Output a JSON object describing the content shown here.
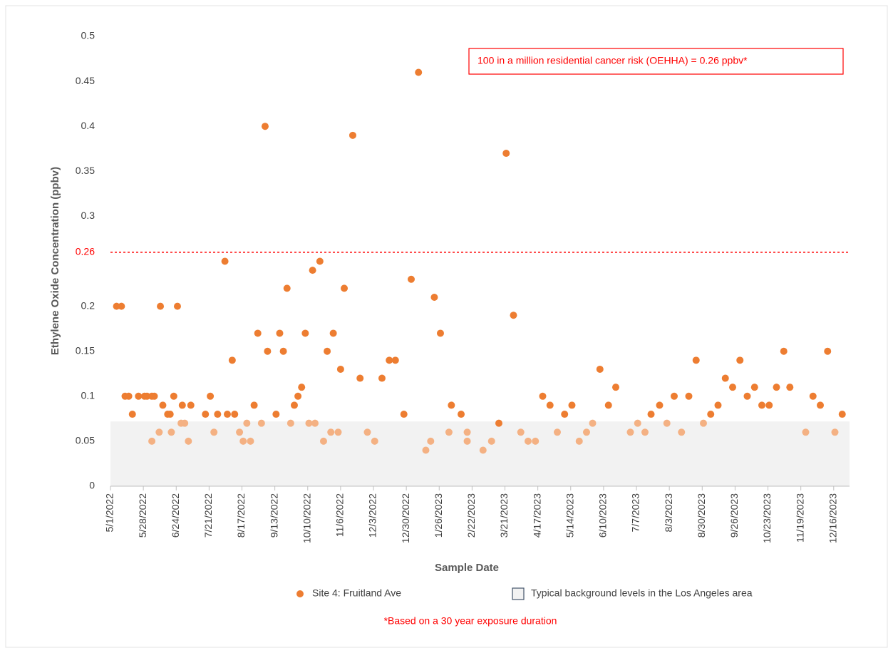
{
  "chart_data": {
    "type": "scatter",
    "x_label": "Sample Date",
    "y_label": "Ethylene Oxide Concentration (ppbv)",
    "xlim": [
      "5/1/2022",
      "12/29/2023"
    ],
    "xticks": [
      "5/1/2022",
      "5/28/2022",
      "6/24/2022",
      "7/21/2022",
      "8/17/2022",
      "9/13/2022",
      "10/10/2022",
      "11/6/2022",
      "12/3/2022",
      "12/30/2022",
      "1/26/2023",
      "2/22/2023",
      "3/21/2023",
      "4/17/2023",
      "5/14/2023",
      "6/10/2023",
      "7/7/2023",
      "8/3/2023",
      "8/30/2023",
      "9/26/2023",
      "10/23/2023",
      "11/19/2023",
      "12/16/2023"
    ],
    "ylim": [
      0,
      0.5
    ],
    "yticks": [
      0,
      0.05,
      0.1,
      0.15,
      0.2,
      0.3,
      0.35,
      0.4,
      0.45,
      0.5
    ],
    "grid": false,
    "reference_line": {
      "value": 0.26,
      "label": "0.26",
      "color": "#ff0000",
      "annotation": "100 in a million residential cancer risk (OEHHA) = 0.26 ppbv*"
    },
    "background_band": {
      "range": [
        0,
        0.072
      ],
      "label": "Typical background levels in the Los Angeles area",
      "color": "#f2f2f2"
    },
    "footnote": "*Based on a 30 year exposure duration",
    "series": [
      {
        "name": "Site 4: Fruitland Ave",
        "color": "#ed7d31",
        "x": [
          "5/6/2022",
          "5/10/2022",
          "5/13/2022",
          "5/16/2022",
          "5/19/2022",
          "5/24/2022",
          "5/29/2022",
          "5/31/2022",
          "6/4/2022",
          "6/6/2022",
          "6/11/2022",
          "6/13/2022",
          "6/17/2022",
          "6/19/2022",
          "6/22/2022",
          "6/25/2022",
          "6/29/2022",
          "7/6/2022",
          "7/18/2022",
          "7/22/2022",
          "7/28/2022",
          "8/3/2022",
          "8/5/2022",
          "8/9/2022",
          "8/11/2022",
          "8/27/2022",
          "8/30/2022",
          "9/5/2022",
          "9/7/2022",
          "9/14/2022",
          "9/17/2022",
          "9/20/2022",
          "9/23/2022",
          "9/29/2022",
          "10/2/2022",
          "10/5/2022",
          "10/8/2022",
          "10/14/2022",
          "10/20/2022",
          "10/26/2022",
          "10/31/2022",
          "11/6/2022",
          "11/9/2022",
          "11/16/2022",
          "11/22/2022",
          "12/10/2022",
          "12/16/2022",
          "12/21/2022",
          "12/28/2022",
          "1/3/2023",
          "1/9/2023",
          "1/22/2023",
          "1/27/2023",
          "2/5/2023",
          "2/13/2023",
          "3/16/2023",
          "3/22/2023",
          "3/28/2023",
          "4/21/2023",
          "4/27/2023",
          "5/9/2023",
          "5/15/2023",
          "6/7/2023",
          "6/14/2023",
          "6/20/2023",
          "7/19/2023",
          "7/26/2023",
          "8/7/2023",
          "8/19/2023",
          "8/25/2023",
          "9/6/2023",
          "9/12/2023",
          "9/18/2023",
          "9/24/2023",
          "9/30/2023",
          "10/6/2023",
          "10/12/2023",
          "10/18/2023",
          "10/24/2023",
          "10/30/2023",
          "11/5/2023",
          "11/10/2023",
          "11/29/2023",
          "12/5/2023",
          "12/11/2023",
          "12/23/2023"
        ],
        "values": [
          0.2,
          0.2,
          0.1,
          0.1,
          0.08,
          0.1,
          0.1,
          0.1,
          0.1,
          0.1,
          0.2,
          0.09,
          0.08,
          0.08,
          0.1,
          0.2,
          0.09,
          0.09,
          0.08,
          0.1,
          0.08,
          0.25,
          0.08,
          0.14,
          0.08,
          0.09,
          0.17,
          0.4,
          0.15,
          0.08,
          0.17,
          0.15,
          0.22,
          0.09,
          0.1,
          0.11,
          0.17,
          0.24,
          0.25,
          0.15,
          0.17,
          0.13,
          0.22,
          0.39,
          0.12,
          0.12,
          0.14,
          0.14,
          0.08,
          0.23,
          0.46,
          0.21,
          0.17,
          0.09,
          0.08,
          0.07,
          0.37,
          0.19,
          0.1,
          0.09,
          0.08,
          0.09,
          0.13,
          0.09,
          0.11,
          0.08,
          0.09,
          0.1,
          0.1,
          0.14,
          0.08,
          0.09,
          0.12,
          0.11,
          0.14,
          0.1,
          0.11,
          0.09,
          0.09,
          0.11,
          0.15,
          0.11,
          0.1,
          0.09,
          0.15,
          0.08
        ]
      },
      {
        "color": "#f4b183",
        "x": [
          "6/4/2022",
          "6/10/2022",
          "6/20/2022",
          "6/28/2022",
          "7/1/2022",
          "7/4/2022",
          "7/25/2022",
          "8/15/2022",
          "8/18/2022",
          "8/21/2022",
          "8/24/2022",
          "9/2/2022",
          "9/26/2022",
          "10/11/2022",
          "10/16/2022",
          "10/23/2022",
          "10/29/2022",
          "11/4/2022",
          "11/28/2022",
          "12/4/2022",
          "1/15/2023",
          "1/19/2023",
          "2/3/2023",
          "2/18/2023",
          "2/18/2023",
          "3/3/2023",
          "3/10/2023",
          "4/3/2023",
          "4/9/2023",
          "4/15/2023",
          "5/3/2023",
          "5/21/2023",
          "5/27/2023",
          "6/1/2023",
          "7/2/2023",
          "7/8/2023",
          "7/14/2023",
          "8/1/2023",
          "8/13/2023",
          "8/31/2023",
          "11/23/2023",
          "12/17/2023"
        ],
        "values": [
          0.05,
          0.06,
          0.06,
          0.07,
          0.07,
          0.05,
          0.06,
          0.06,
          0.05,
          0.07,
          0.05,
          0.07,
          0.07,
          0.07,
          0.07,
          0.05,
          0.06,
          0.06,
          0.06,
          0.05,
          0.04,
          0.05,
          0.06,
          0.05,
          0.06,
          0.04,
          0.05,
          0.06,
          0.05,
          0.05,
          0.06,
          0.05,
          0.06,
          0.07,
          0.06,
          0.07,
          0.06,
          0.07,
          0.06,
          0.07,
          0.06,
          0.06
        ]
      }
    ]
  }
}
